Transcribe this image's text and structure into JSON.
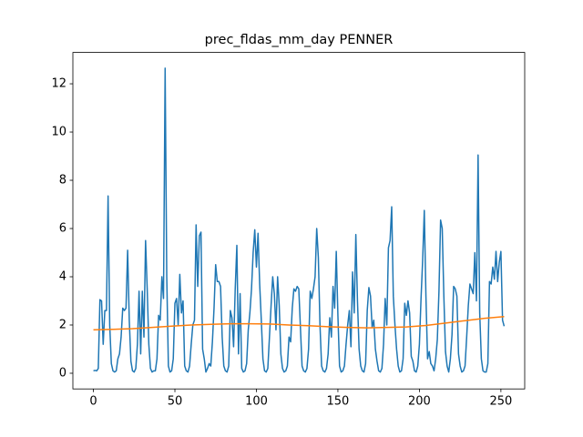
{
  "chart_data": {
    "type": "line",
    "title": "prec_fldas_mm_day PENNER",
    "xlim": [
      -12.6,
      264.6
    ],
    "ylim": [
      -0.65,
      13.3
    ],
    "xticks": [
      0,
      50,
      100,
      150,
      200,
      250
    ],
    "yticks": [
      0,
      2,
      4,
      6,
      8,
      10,
      12
    ],
    "series": [
      {
        "color": "#1f77b4",
        "x": [
          0,
          1,
          2,
          3,
          4,
          5,
          6,
          7,
          8,
          9,
          10,
          11,
          12,
          13,
          14,
          15,
          16,
          17,
          18,
          19,
          20,
          21,
          22,
          23,
          24,
          25,
          26,
          27,
          28,
          29,
          30,
          31,
          32,
          33,
          34,
          35,
          36,
          37,
          38,
          39,
          40,
          41,
          42,
          43,
          44,
          45,
          46,
          47,
          48,
          49,
          50,
          51,
          52,
          53,
          54,
          55,
          56,
          57,
          58,
          59,
          60,
          61,
          62,
          63,
          64,
          65,
          66,
          67,
          68,
          69,
          70,
          71,
          72,
          73,
          74,
          75,
          76,
          77,
          78,
          79,
          80,
          81,
          82,
          83,
          84,
          85,
          86,
          87,
          88,
          89,
          90,
          91,
          92,
          93,
          94,
          95,
          96,
          97,
          98,
          99,
          100,
          101,
          102,
          103,
          104,
          105,
          106,
          107,
          108,
          109,
          110,
          111,
          112,
          113,
          114,
          115,
          116,
          117,
          118,
          119,
          120,
          121,
          122,
          123,
          124,
          125,
          126,
          127,
          128,
          129,
          130,
          131,
          132,
          133,
          134,
          135,
          136,
          137,
          138,
          139,
          140,
          141,
          142,
          143,
          144,
          145,
          146,
          147,
          148,
          149,
          150,
          151,
          152,
          153,
          154,
          155,
          156,
          157,
          158,
          159,
          160,
          161,
          162,
          163,
          164,
          165,
          166,
          167,
          168,
          169,
          170,
          171,
          172,
          173,
          174,
          175,
          176,
          177,
          178,
          179,
          180,
          181,
          182,
          183,
          184,
          185,
          186,
          187,
          188,
          189,
          190,
          191,
          192,
          193,
          194,
          195,
          196,
          197,
          198,
          199,
          200,
          201,
          202,
          203,
          204,
          205,
          206,
          207,
          208,
          209,
          210,
          211,
          212,
          213,
          214,
          215,
          216,
          217,
          218,
          219,
          220,
          221,
          222,
          223,
          224,
          225,
          226,
          227,
          228,
          229,
          230,
          231,
          232,
          233,
          234,
          235,
          236,
          237,
          238,
          239,
          240,
          241,
          242,
          243,
          244,
          245,
          246,
          247,
          248,
          249,
          250,
          251,
          252
        ],
        "values": [
          0.1,
          0.12,
          0.1,
          0.2,
          3.05,
          3.0,
          1.2,
          2.6,
          2.6,
          7.35,
          2.0,
          0.4,
          0.1,
          0.05,
          0.1,
          0.6,
          0.8,
          1.5,
          2.7,
          2.6,
          2.7,
          5.1,
          2.2,
          0.5,
          0.1,
          0.05,
          0.2,
          1.2,
          3.4,
          0.8,
          3.4,
          1.5,
          5.5,
          3.5,
          1.2,
          0.2,
          0.05,
          0.1,
          0.1,
          0.6,
          2.4,
          2.2,
          4.0,
          3.1,
          12.65,
          4.0,
          0.3,
          0.05,
          0.1,
          0.6,
          2.9,
          3.1,
          2.0,
          4.1,
          2.5,
          3.0,
          0.3,
          0.1,
          0.05,
          0.3,
          1.2,
          2.0,
          2.2,
          6.15,
          3.6,
          5.7,
          5.85,
          1.0,
          0.6,
          0.05,
          0.2,
          0.4,
          0.3,
          1.3,
          2.7,
          4.5,
          3.8,
          3.8,
          3.6,
          1.5,
          0.3,
          0.1,
          0.05,
          0.3,
          2.6,
          2.3,
          1.1,
          3.5,
          5.3,
          0.8,
          3.3,
          0.2,
          0.05,
          0.1,
          0.4,
          1.8,
          2.5,
          3.5,
          5.0,
          5.95,
          4.4,
          5.8,
          3.7,
          2.2,
          0.6,
          0.1,
          0.05,
          0.2,
          1.5,
          2.8,
          4.0,
          3.3,
          1.8,
          4.0,
          2.8,
          0.8,
          0.2,
          0.05,
          0.1,
          0.3,
          1.5,
          1.3,
          2.7,
          3.5,
          3.4,
          3.6,
          3.5,
          1.9,
          0.3,
          0.1,
          0.05,
          0.2,
          1.0,
          3.4,
          3.1,
          3.5,
          4.0,
          6.0,
          4.8,
          2.0,
          0.3,
          0.1,
          0.05,
          0.2,
          0.8,
          2.3,
          1.5,
          3.6,
          2.7,
          5.05,
          2.4,
          0.3,
          0.05,
          0.1,
          0.3,
          1.2,
          2.0,
          2.6,
          1.1,
          4.2,
          2.5,
          5.75,
          3.0,
          1.0,
          0.3,
          0.1,
          0.05,
          0.4,
          2.6,
          3.55,
          3.2,
          1.9,
          2.2,
          1.0,
          0.5,
          0.1,
          0.05,
          0.2,
          1.2,
          3.1,
          2.0,
          5.2,
          5.5,
          6.9,
          3.2,
          2.0,
          1.0,
          0.3,
          0.05,
          0.1,
          0.6,
          2.9,
          2.4,
          3.0,
          2.5,
          0.7,
          0.5,
          0.1,
          0.05,
          0.3,
          1.2,
          3.1,
          4.7,
          6.75,
          3.2,
          0.6,
          0.9,
          0.4,
          0.3,
          0.1,
          0.6,
          1.4,
          3.4,
          6.35,
          6.0,
          3.2,
          0.9,
          0.3,
          0.05,
          0.6,
          1.6,
          3.6,
          3.5,
          3.2,
          0.8,
          0.3,
          0.05,
          0.1,
          0.3,
          1.5,
          2.8,
          3.7,
          3.5,
          3.3,
          5.0,
          3.0,
          9.05,
          2.5,
          0.6,
          0.1,
          0.05,
          0.05,
          0.4,
          3.8,
          3.7,
          4.4,
          3.9,
          5.05,
          3.8,
          4.6,
          5.05,
          2.2,
          1.95
        ]
      },
      {
        "color": "#ff7f0e",
        "x": [
          0,
          12,
          24,
          36,
          48,
          60,
          72,
          84,
          96,
          108,
          120,
          132,
          144,
          156,
          168,
          180,
          192,
          204,
          216,
          228,
          240,
          252
        ],
        "values": [
          1.8,
          1.82,
          1.85,
          1.9,
          1.95,
          2.0,
          2.03,
          2.05,
          2.05,
          2.04,
          2.0,
          1.97,
          1.93,
          1.9,
          1.88,
          1.9,
          1.92,
          1.98,
          2.08,
          2.18,
          2.28,
          2.35
        ]
      }
    ]
  }
}
